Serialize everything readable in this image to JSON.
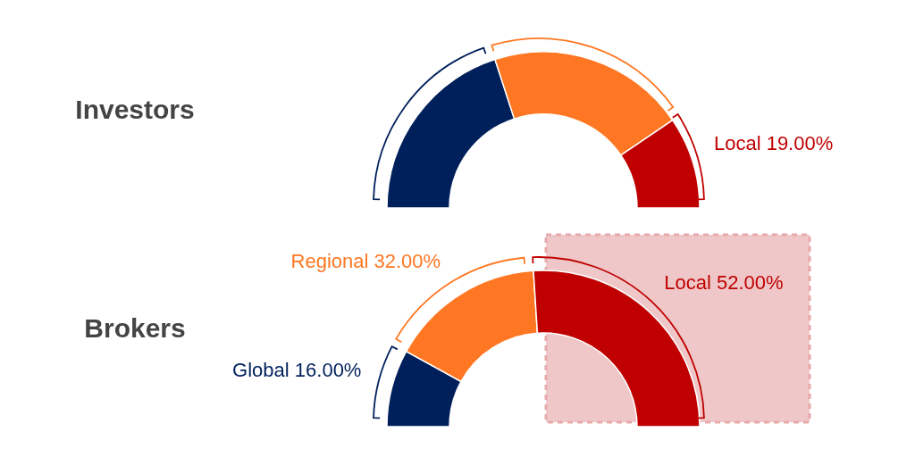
{
  "chart_data": [
    {
      "type": "donut",
      "title": "Investors",
      "categories": [
        null,
        null,
        "Local"
      ],
      "values": [
        40,
        41,
        19
      ],
      "colors": [
        "#00205b",
        "#ff7722",
        "#c00000"
      ],
      "value_labels": [
        null,
        null,
        "19.00%"
      ]
    },
    {
      "type": "donut",
      "title": "Brokers",
      "categories": [
        "Global",
        "Regional",
        "Local"
      ],
      "values": [
        16,
        32,
        52
      ],
      "colors": [
        "#00205b",
        "#ff7722",
        "#c00000"
      ],
      "value_labels": [
        "16.00%",
        "32.00%",
        "52.00%"
      ]
    }
  ]
}
